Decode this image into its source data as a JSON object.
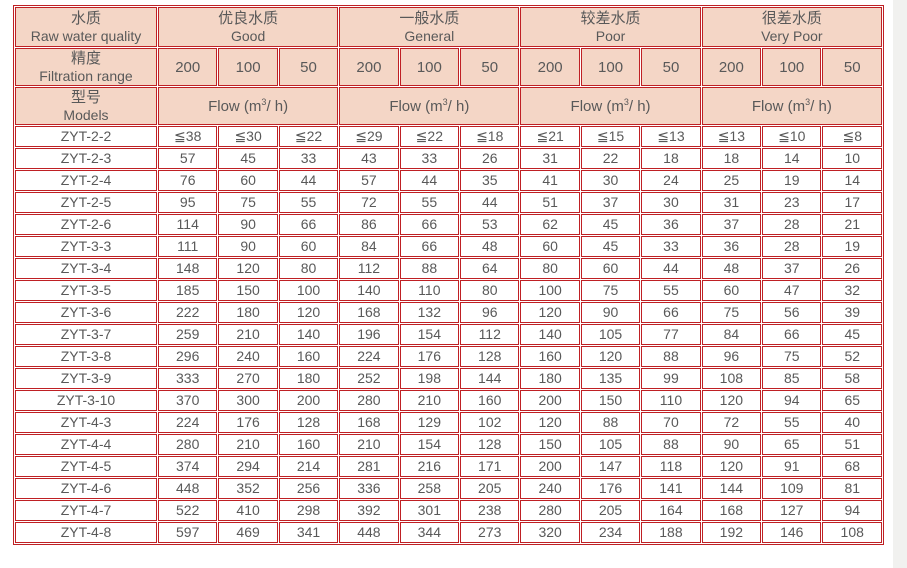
{
  "page": {
    "right_strip_color": "#f1f1ef",
    "background": "#ffffff"
  },
  "table": {
    "border_color": "#bf2024",
    "header_bg": "#f4d6c6",
    "text_color": "#595959",
    "corner": {
      "quality": {
        "zh": "水质",
        "en": "Raw water quality"
      },
      "filtration": {
        "zh": "精度",
        "en": "Filtration range"
      },
      "models": {
        "zh": "型号",
        "en": "Models"
      }
    },
    "groups": [
      {
        "zh": "优良水质",
        "en": "Good"
      },
      {
        "zh": "一般水质",
        "en": "General"
      },
      {
        "zh": "较差水质",
        "en": "Poor"
      },
      {
        "zh": "很差水质",
        "en": "Very Poor"
      }
    ],
    "filtration_values": [
      "200",
      "100",
      "50"
    ],
    "flow": {
      "prefix": "Flow (m",
      "sup": "3",
      "suffix": "/ h)"
    },
    "rows": [
      {
        "model": "ZYT-2-2",
        "values": [
          "≦38",
          "≦30",
          "≦22",
          "≦29",
          "≦22",
          "≦18",
          "≦21",
          "≦15",
          "≦13",
          "≦13",
          "≦10",
          "≦8"
        ]
      },
      {
        "model": "ZYT-2-3",
        "values": [
          "57",
          "45",
          "33",
          "43",
          "33",
          "26",
          "31",
          "22",
          "18",
          "18",
          "14",
          "10"
        ]
      },
      {
        "model": "ZYT-2-4",
        "values": [
          "76",
          "60",
          "44",
          "57",
          "44",
          "35",
          "41",
          "30",
          "24",
          "25",
          "19",
          "14"
        ]
      },
      {
        "model": "ZYT-2-5",
        "values": [
          "95",
          "75",
          "55",
          "72",
          "55",
          "44",
          "51",
          "37",
          "30",
          "31",
          "23",
          "17"
        ]
      },
      {
        "model": "ZYT-2-6",
        "values": [
          "114",
          "90",
          "66",
          "86",
          "66",
          "53",
          "62",
          "45",
          "36",
          "37",
          "28",
          "21"
        ]
      },
      {
        "model": "ZYT-3-3",
        "values": [
          "111",
          "90",
          "60",
          "84",
          "66",
          "48",
          "60",
          "45",
          "33",
          "36",
          "28",
          "19"
        ]
      },
      {
        "model": "ZYT-3-4",
        "values": [
          "148",
          "120",
          "80",
          "112",
          "88",
          "64",
          "80",
          "60",
          "44",
          "48",
          "37",
          "26"
        ]
      },
      {
        "model": "ZYT-3-5",
        "values": [
          "185",
          "150",
          "100",
          "140",
          "110",
          "80",
          "100",
          "75",
          "55",
          "60",
          "47",
          "32"
        ]
      },
      {
        "model": "ZYT-3-6",
        "values": [
          "222",
          "180",
          "120",
          "168",
          "132",
          "96",
          "120",
          "90",
          "66",
          "75",
          "56",
          "39"
        ]
      },
      {
        "model": "ZYT-3-7",
        "values": [
          "259",
          "210",
          "140",
          "196",
          "154",
          "112",
          "140",
          "105",
          "77",
          "84",
          "66",
          "45"
        ]
      },
      {
        "model": "ZYT-3-8",
        "values": [
          "296",
          "240",
          "160",
          "224",
          "176",
          "128",
          "160",
          "120",
          "88",
          "96",
          "75",
          "52"
        ]
      },
      {
        "model": "ZYT-3-9",
        "values": [
          "333",
          "270",
          "180",
          "252",
          "198",
          "144",
          "180",
          "135",
          "99",
          "108",
          "85",
          "58"
        ]
      },
      {
        "model": "ZYT-3-10",
        "values": [
          "370",
          "300",
          "200",
          "280",
          "210",
          "160",
          "200",
          "150",
          "110",
          "120",
          "94",
          "65"
        ]
      },
      {
        "model": "ZYT-4-3",
        "values": [
          "224",
          "176",
          "128",
          "168",
          "129",
          "102",
          "120",
          "88",
          "70",
          "72",
          "55",
          "40"
        ]
      },
      {
        "model": "ZYT-4-4",
        "values": [
          "280",
          "210",
          "160",
          "210",
          "154",
          "128",
          "150",
          "105",
          "88",
          "90",
          "65",
          "51"
        ]
      },
      {
        "model": "ZYT-4-5",
        "values": [
          "374",
          "294",
          "214",
          "281",
          "216",
          "171",
          "200",
          "147",
          "118",
          "120",
          "91",
          "68"
        ]
      },
      {
        "model": "ZYT-4-6",
        "values": [
          "448",
          "352",
          "256",
          "336",
          "258",
          "205",
          "240",
          "176",
          "141",
          "144",
          "109",
          "81"
        ]
      },
      {
        "model": "ZYT-4-7",
        "values": [
          "522",
          "410",
          "298",
          "392",
          "301",
          "238",
          "280",
          "205",
          "164",
          "168",
          "127",
          "94"
        ]
      },
      {
        "model": "ZYT-4-8",
        "values": [
          "597",
          "469",
          "341",
          "448",
          "344",
          "273",
          "320",
          "234",
          "188",
          "192",
          "146",
          "108"
        ]
      }
    ]
  }
}
